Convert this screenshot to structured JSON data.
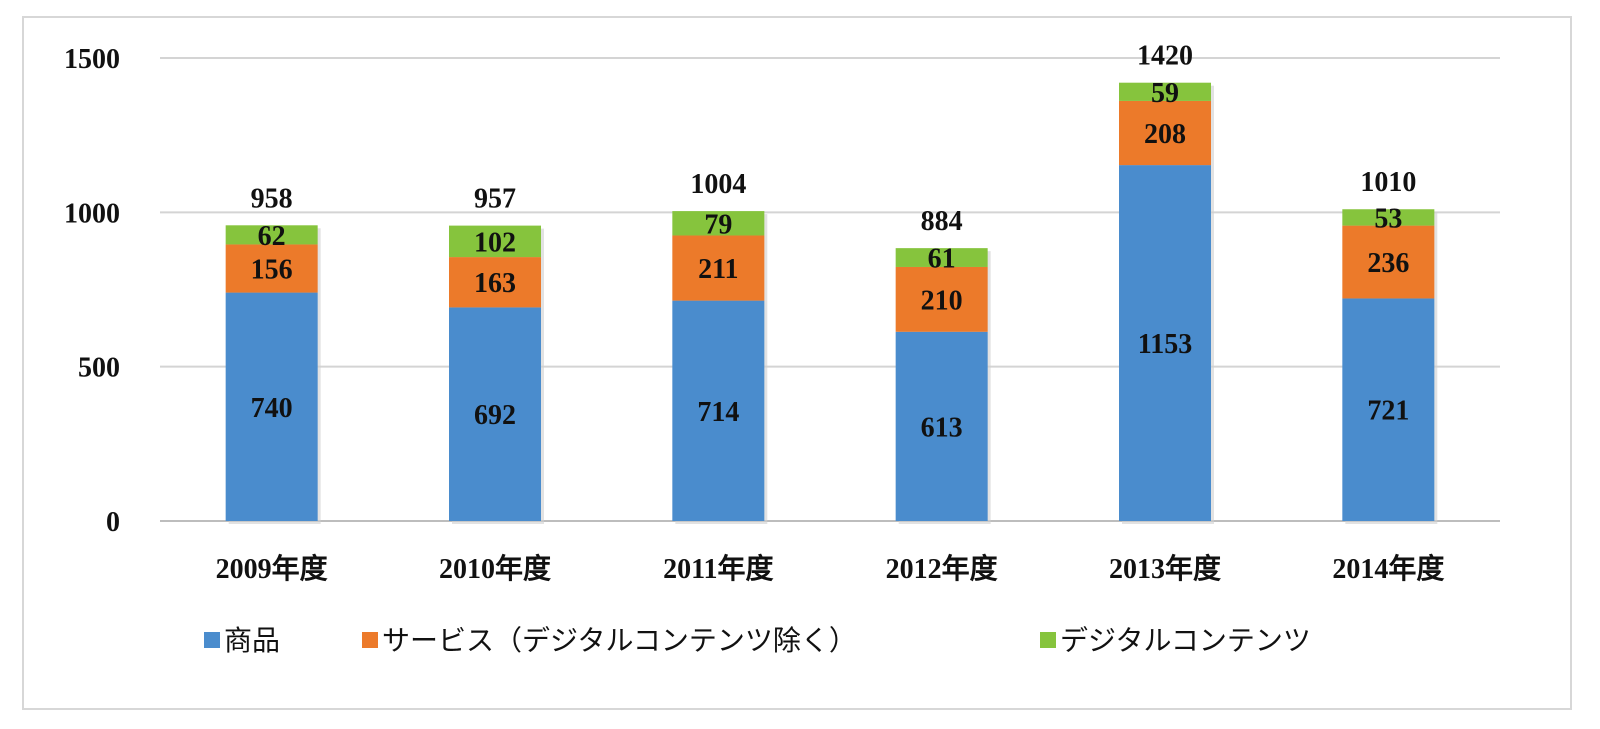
{
  "chart_data": {
    "type": "bar",
    "stacked": true,
    "categories": [
      "2009年度",
      "2010年度",
      "2011年度",
      "2012年度",
      "2013年度",
      "2014年度"
    ],
    "series": [
      {
        "name": "商品",
        "color": "#4a8ccd",
        "values": [
          740,
          692,
          714,
          613,
          1153,
          721
        ]
      },
      {
        "name": "サービス（デジタルコンテンツ除く）",
        "color": "#ec7a2a",
        "values": [
          156,
          163,
          211,
          210,
          208,
          236
        ]
      },
      {
        "name": "デジタルコンテンツ",
        "color": "#86c43d",
        "values": [
          62,
          102,
          79,
          61,
          59,
          53
        ]
      }
    ],
    "totals": [
      958,
      957,
      1004,
      884,
      1420,
      1010
    ],
    "yticks": [
      0,
      500,
      1000,
      1500
    ],
    "ylim": [
      0,
      1500
    ],
    "grid": true,
    "legend": "bottom"
  }
}
